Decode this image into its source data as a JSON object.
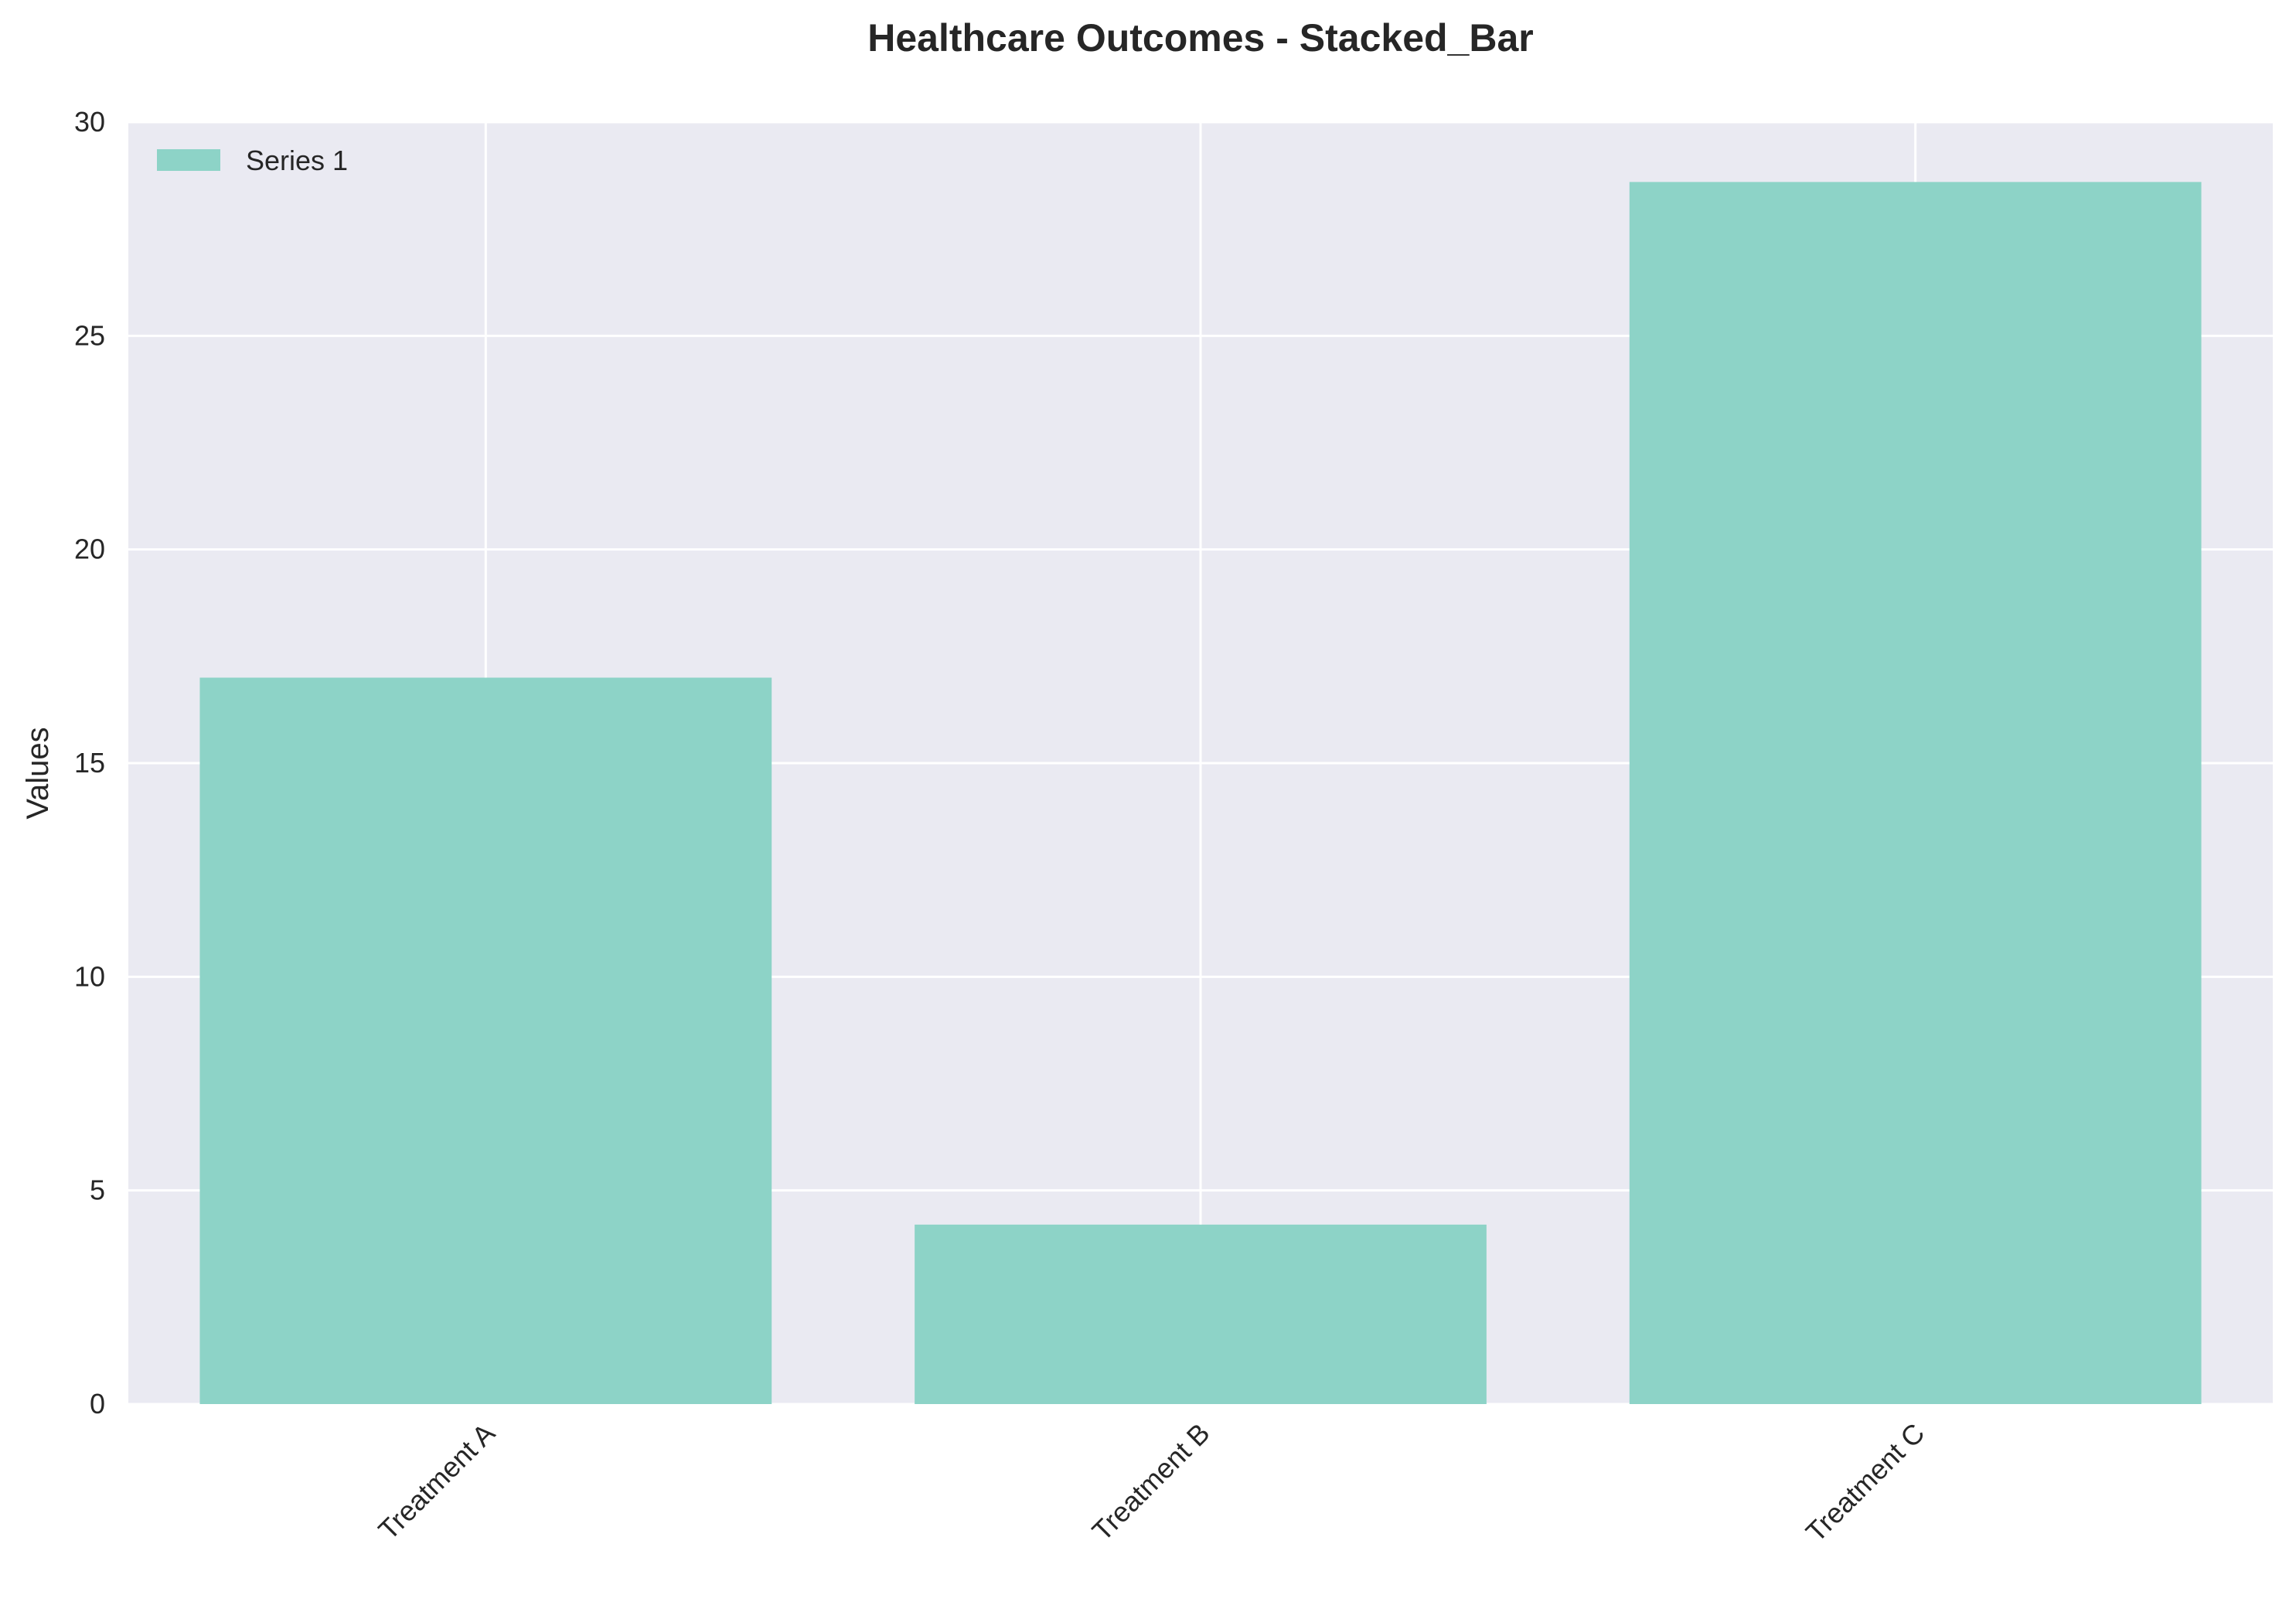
{
  "chart_data": {
    "type": "bar",
    "title": "Healthcare Outcomes - Stacked_Bar",
    "xlabel": "",
    "ylabel": "Values",
    "categories": [
      "Treatment A",
      "Treatment B",
      "Treatment C"
    ],
    "series": [
      {
        "name": "Series 1",
        "values": [
          17.0,
          4.2,
          28.6
        ],
        "color": "#8dd3c7"
      }
    ],
    "ylim": [
      0,
      30
    ],
    "yticks": [
      0,
      5,
      10,
      15,
      20,
      25,
      30
    ],
    "grid": true,
    "legend_position": "top-left",
    "colors": {
      "background": "#eaeaf2",
      "grid": "#ffffff",
      "text": "#262626"
    }
  }
}
